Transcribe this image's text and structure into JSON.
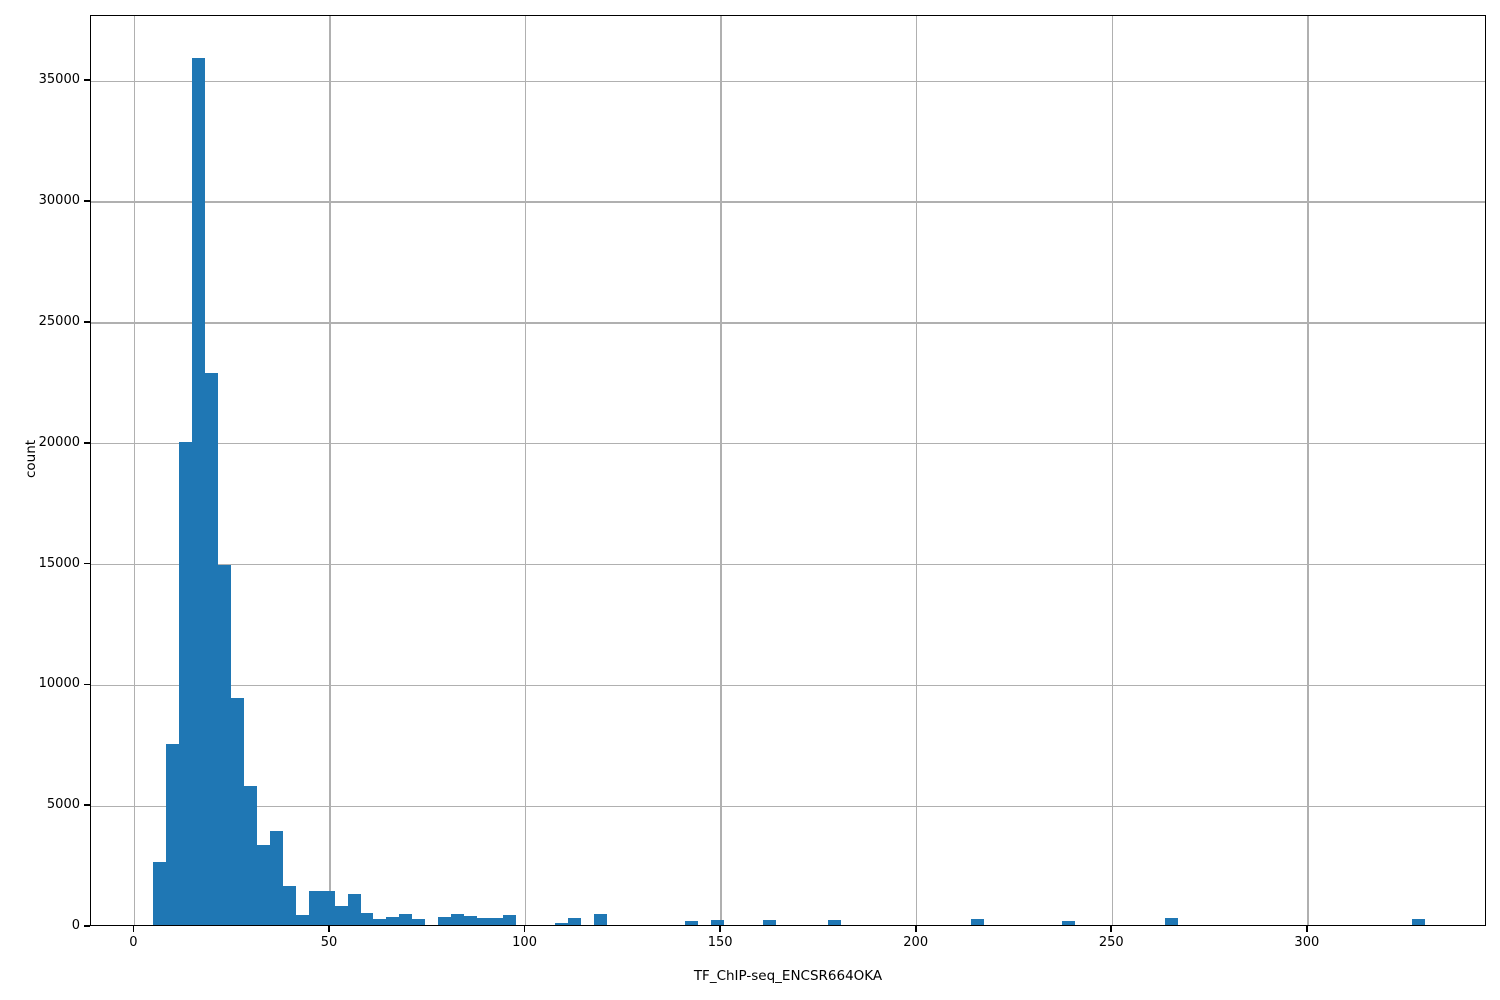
{
  "figure": {
    "background": "#ffffff",
    "bar_color": "#1f77b4",
    "grid_color": "#b0b0b0",
    "spine_color": "#000000",
    "text_color": "#000000"
  },
  "chart_data": {
    "type": "bar",
    "subtype": "histogram",
    "title": "",
    "xlabel": "TF_ChIP-seq_ENCSR664OKA",
    "ylabel": "count",
    "grid": true,
    "legend_position": "none",
    "xlim": [
      -11.1,
      345.8
    ],
    "ylim": [
      0,
      37700
    ],
    "xticks": [
      0,
      50,
      100,
      150,
      200,
      250,
      300
    ],
    "yticks": [
      0,
      5000,
      10000,
      15000,
      20000,
      25000,
      30000,
      35000
    ],
    "bin_start": 4.7,
    "bin_width": 3.319,
    "counts": [
      2600,
      7500,
      20000,
      35900,
      22860,
      14900,
      9400,
      5750,
      3300,
      3890,
      1600,
      410,
      1400,
      1400,
      800,
      1300,
      500,
      250,
      330,
      450,
      250,
      0,
      330,
      450,
      370,
      290,
      290,
      410,
      0,
      0,
      0,
      100,
      280,
      0,
      460,
      0,
      0,
      0,
      0,
      0,
      0,
      180,
      0,
      200,
      0,
      0,
      0,
      190,
      0,
      0,
      0,
      0,
      200,
      0,
      0,
      0,
      0,
      0,
      0,
      0,
      0,
      0,
      0,
      230,
      0,
      0,
      0,
      0,
      0,
      0,
      180,
      0,
      0,
      0,
      0,
      0,
      0,
      0,
      270,
      0,
      0,
      0,
      0,
      0,
      0,
      0,
      0,
      0,
      0,
      0,
      0,
      0,
      0,
      0,
      0,
      0,
      0,
      230
    ]
  }
}
